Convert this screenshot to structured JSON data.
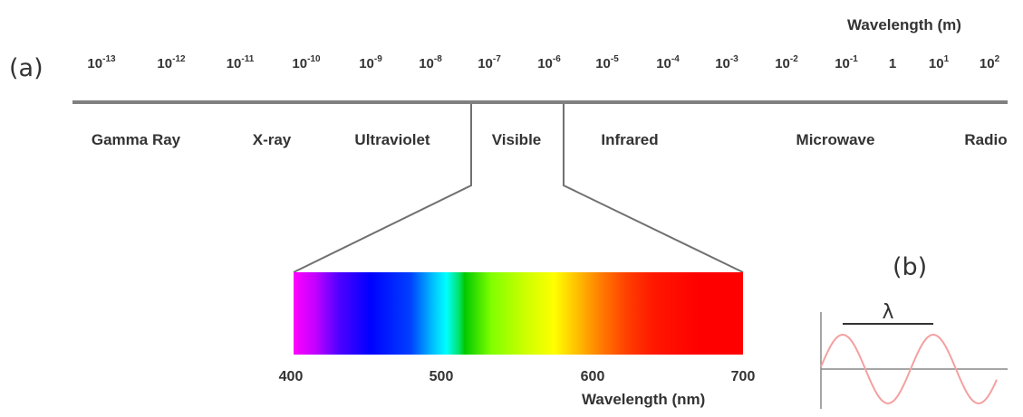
{
  "panels": {
    "a": "(a)",
    "b": "(b)"
  },
  "wavelength_axis": {
    "title": "Wavelength (m)",
    "ticks": [
      {
        "base": "10",
        "exp": "-13"
      },
      {
        "base": "10",
        "exp": "-12"
      },
      {
        "base": "10",
        "exp": "-11"
      },
      {
        "base": "10",
        "exp": "-10"
      },
      {
        "base": "10",
        "exp": "-9"
      },
      {
        "base": "10",
        "exp": "-8"
      },
      {
        "base": "10",
        "exp": "-7"
      },
      {
        "base": "10",
        "exp": "-6"
      },
      {
        "base": "10",
        "exp": "-5"
      },
      {
        "base": "10",
        "exp": "-4"
      },
      {
        "base": "10",
        "exp": "-3"
      },
      {
        "base": "10",
        "exp": "-2"
      },
      {
        "base": "10",
        "exp": "-1"
      },
      {
        "base": "1",
        "exp": ""
      },
      {
        "base": "10",
        "exp": "1"
      },
      {
        "base": "10",
        "exp": "2"
      }
    ]
  },
  "bands": [
    "Gamma Ray",
    "X-ray",
    "Ultraviolet",
    "Visible",
    "Infrared",
    "Microwave",
    "Radio"
  ],
  "visible_spectrum": {
    "title": "Wavelength (nm)",
    "ticks": [
      "400",
      "500",
      "600",
      "700"
    ],
    "range_nm": [
      400,
      700
    ]
  },
  "wave": {
    "symbol": "λ",
    "color": "#f4a0a0"
  },
  "colors": {
    "axis_line": "#808080",
    "text": "#333333"
  }
}
